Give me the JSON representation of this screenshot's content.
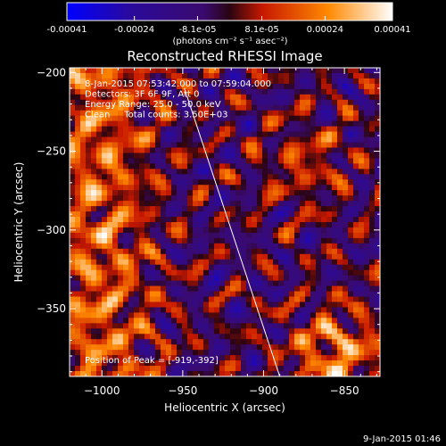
{
  "chart_data": {
    "type": "heatmap",
    "title": "Reconstructed RHESSI Image",
    "xlabel": "Heliocentric X (arcsec)",
    "ylabel": "Heliocentric Y (arcsec)",
    "xlim": [
      -1020,
      -828
    ],
    "ylim": [
      -393,
      -197
    ],
    "x_ticks": [
      -1000,
      -950,
      -900,
      -850
    ],
    "y_ticks": [
      -200,
      -250,
      -300,
      -350
    ],
    "colorbar": {
      "range": [
        -0.00041,
        0.00041
      ],
      "tick_values": [
        -0.00041,
        -0.00024,
        -8.1e-05,
        8.1e-05,
        0.00024,
        0.00041
      ],
      "tick_labels": [
        "-0.00041",
        "-0.00024",
        "-8.1e-05",
        "8.1e-05",
        "0.00024",
        "0.00041"
      ],
      "unit_label": "(photons cm⁻² s⁻¹ asec⁻²)",
      "colors": [
        "#0000ff",
        "#3a0a6e",
        "#2a0410",
        "#c81800",
        "#ff8800",
        "#ffffff"
      ]
    },
    "annotations": [
      "8-Jan-2015 07:53:42.000 to 07:59:04.000",
      "Detectors: 3F 6F 9F, Att 0",
      "Energy Range: 25.0 - 50.0 keV",
      "Clean     Total counts: 3.50E+03"
    ],
    "peak_label": "Position of Peak = [-919,-392]",
    "limb_line": [
      [
        -949,
        -210
      ],
      [
        -890,
        -393
      ]
    ]
  },
  "footer_timestamp": "9-Jan-2015 01:46"
}
